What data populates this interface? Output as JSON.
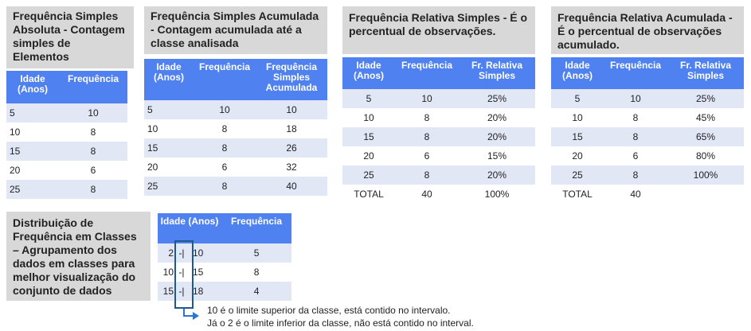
{
  "panel1": {
    "title": "Frequência Simples Absoluta - Contagem simples de Elementos",
    "headers": [
      "Idade (Anos)",
      "Frequência"
    ],
    "rows": [
      [
        "5",
        "10"
      ],
      [
        "10",
        "8"
      ],
      [
        "15",
        "8"
      ],
      [
        "20",
        "6"
      ],
      [
        "25",
        "8"
      ]
    ]
  },
  "panel2": {
    "title": "Frequência Simples Acumulada - Contagem acumulada até a classe analisada",
    "headers": [
      "Idade (Anos)",
      "Frequência",
      "Frequência Simples Acumulada"
    ],
    "rows": [
      [
        "5",
        "10",
        "10"
      ],
      [
        "10",
        "8",
        "18"
      ],
      [
        "15",
        "8",
        "26"
      ],
      [
        "20",
        "6",
        "32"
      ],
      [
        "25",
        "8",
        "40"
      ]
    ]
  },
  "panel3": {
    "title": "Frequência Relativa Simples - É o percentual de observações.",
    "headers": [
      "Idade (Anos)",
      "Frequência",
      "Fr. Relativa Simples"
    ],
    "rows": [
      [
        "5",
        "10",
        "25%"
      ],
      [
        "10",
        "8",
        "20%"
      ],
      [
        "15",
        "8",
        "20%"
      ],
      [
        "20",
        "6",
        "15%"
      ],
      [
        "25",
        "8",
        "20%"
      ]
    ],
    "total": [
      "TOTAL",
      "40",
      "100%"
    ]
  },
  "panel4": {
    "title": "Frequência Relativa Acumulada - É o percentual de observações acumulado.",
    "headers": [
      "Idade (Anos)",
      "Frequência",
      "Fr. Relativa Simples"
    ],
    "rows": [
      [
        "5",
        "10",
        "25%"
      ],
      [
        "10",
        "8",
        "45%"
      ],
      [
        "15",
        "8",
        "65%"
      ],
      [
        "20",
        "6",
        "80%"
      ],
      [
        "25",
        "8",
        "100%"
      ]
    ],
    "total": [
      "TOTAL",
      "40",
      ""
    ]
  },
  "panel5": {
    "title": "Distribuição de Frequência em Classes – Agrupamento dos dados em classes para melhor visualização do conjunto de dados",
    "headers": [
      "Idade (Anos)",
      "Frequência"
    ],
    "rows": [
      {
        "low": "2",
        "sep": "-|",
        "high": "10",
        "freq": "5"
      },
      {
        "low": "10",
        "sep": "-|",
        "high": "15",
        "freq": "8"
      },
      {
        "low": "15",
        "sep": "-|",
        "high": "18",
        "freq": "4"
      }
    ],
    "note_line1": "10 é o limite superior da classe, está contido no intervalo.",
    "note_line2": "Já o 2 é o limite inferior da classe, não está contido no interval."
  }
}
